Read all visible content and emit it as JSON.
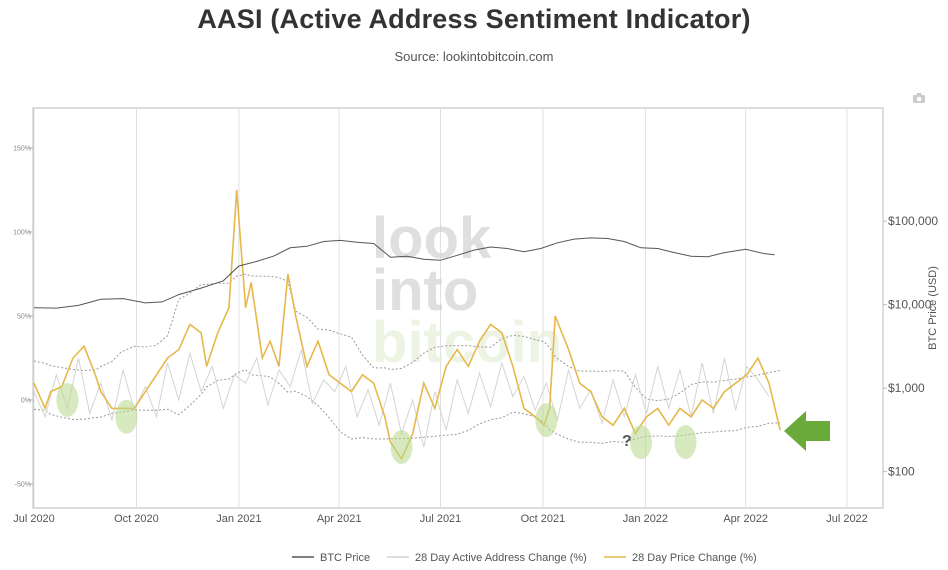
{
  "chart_data": {
    "type": "line",
    "title": "AASI (Active Address Sentiment Indicator)",
    "subtitle": "Source: lookintobitcoin.com",
    "watermark": [
      "look",
      "into",
      "bitcoin"
    ],
    "x_ticks": [
      "Jul 2020",
      "Oct 2020",
      "Jan 2021",
      "Apr 2021",
      "Jul 2021",
      "Oct 2021",
      "Jan 2022",
      "Apr 2022",
      "Jul 2022"
    ],
    "x_tick_days": [
      0,
      92,
      184,
      274,
      365,
      457,
      549,
      639,
      730
    ],
    "y_left": {
      "ticks": [
        "150%",
        "100%",
        "50%",
        "0%",
        "-50%"
      ],
      "tick_values": [
        150,
        100,
        50,
        0,
        -50
      ],
      "range": [
        -52,
        172
      ]
    },
    "y_right": {
      "label": "BTC Price (USD)",
      "ticks": [
        "$100,000",
        "$10,000",
        "$1,000",
        "$100"
      ],
      "tick_values": [
        100000,
        10000,
        1000,
        100
      ],
      "log": true
    },
    "colors": {
      "price": "#555555",
      "active": "#d4d4d4",
      "change": "#e6b84c",
      "band": "#999999",
      "highlight": "#b7d98a",
      "arrow": "#6aaa3a"
    },
    "series": [
      {
        "name": "BTC Price",
        "axis": "right",
        "x": [
          0,
          20,
          40,
          60,
          80,
          100,
          115,
          130,
          150,
          170,
          184,
          200,
          215,
          230,
          245,
          260,
          275,
          290,
          305,
          320,
          335,
          350,
          365,
          380,
          395,
          410,
          425,
          440,
          455,
          470,
          485,
          500,
          515,
          530,
          545,
          560,
          575,
          590,
          605,
          620,
          639,
          655,
          665
        ],
        "values": [
          9200,
          9100,
          9800,
          11600,
          11800,
          10500,
          10800,
          13200,
          15800,
          19300,
          29000,
          33000,
          38000,
          48000,
          50000,
          57000,
          58800,
          56000,
          54000,
          37000,
          38000,
          35000,
          34000,
          39000,
          45000,
          49000,
          47000,
          43000,
          47000,
          55000,
          61000,
          63000,
          62000,
          57000,
          48000,
          47000,
          42000,
          38000,
          37500,
          42000,
          46000,
          41000,
          39500
        ]
      },
      {
        "name": "28 Day Active Address Change (%)",
        "axis": "left",
        "x": [
          0,
          10,
          20,
          30,
          40,
          50,
          60,
          70,
          80,
          90,
          100,
          110,
          120,
          130,
          140,
          150,
          160,
          170,
          180,
          190,
          200,
          210,
          220,
          230,
          240,
          250,
          260,
          270,
          280,
          290,
          300,
          310,
          320,
          330,
          340,
          350,
          360,
          370,
          380,
          390,
          400,
          410,
          420,
          430,
          440,
          450,
          460,
          470,
          480,
          490,
          500,
          510,
          520,
          530,
          540,
          550,
          560,
          570,
          580,
          590,
          600,
          610,
          620,
          630,
          640,
          650,
          660
        ],
        "values": [
          5,
          -10,
          15,
          -5,
          25,
          -8,
          10,
          -12,
          18,
          -6,
          8,
          -10,
          22,
          0,
          28,
          5,
          20,
          -5,
          15,
          10,
          25,
          -3,
          18,
          8,
          30,
          -2,
          12,
          5,
          20,
          -10,
          6,
          -15,
          10,
          -20,
          0,
          -28,
          5,
          -18,
          12,
          -8,
          16,
          -4,
          22,
          2,
          14,
          -6,
          10,
          -12,
          18,
          -5,
          6,
          -14,
          12,
          -10,
          15,
          -8,
          20,
          -5,
          18,
          -10,
          22,
          -8,
          25,
          -6,
          20,
          12,
          2
        ]
      },
      {
        "name": "28 Day Price Change (%)",
        "axis": "left",
        "x": [
          0,
          10,
          15,
          25,
          35,
          45,
          55,
          60,
          70,
          78,
          90,
          100,
          110,
          120,
          130,
          140,
          150,
          155,
          165,
          175,
          182,
          190,
          195,
          205,
          212,
          220,
          228,
          235,
          245,
          255,
          265,
          275,
          285,
          295,
          305,
          315,
          320,
          330,
          340,
          350,
          360,
          370,
          380,
          390,
          400,
          410,
          420,
          430,
          440,
          450,
          458,
          463,
          468,
          480,
          490,
          500,
          510,
          520,
          530,
          540,
          550,
          560,
          570,
          580,
          590,
          600,
          610,
          620,
          630,
          640,
          650,
          660,
          670
        ],
        "values": [
          10,
          -5,
          5,
          8,
          25,
          32,
          15,
          5,
          -5,
          -5,
          -5,
          5,
          15,
          25,
          30,
          45,
          40,
          20,
          40,
          55,
          125,
          55,
          70,
          25,
          35,
          20,
          75,
          50,
          20,
          35,
          15,
          10,
          5,
          15,
          10,
          -10,
          -25,
          -35,
          -20,
          10,
          -5,
          20,
          30,
          20,
          35,
          45,
          40,
          20,
          -5,
          -10,
          -15,
          -5,
          50,
          30,
          10,
          5,
          -10,
          -15,
          -5,
          -20,
          -10,
          -5,
          -15,
          -5,
          -10,
          0,
          -5,
          5,
          10,
          15,
          25,
          10,
          -18
        ]
      }
    ],
    "legend": [
      "BTC Price",
      "28 Day Active Address Change (%)",
      "28 Day Price Change (%)"
    ],
    "annotations": {
      "question_mark": "?"
    }
  }
}
